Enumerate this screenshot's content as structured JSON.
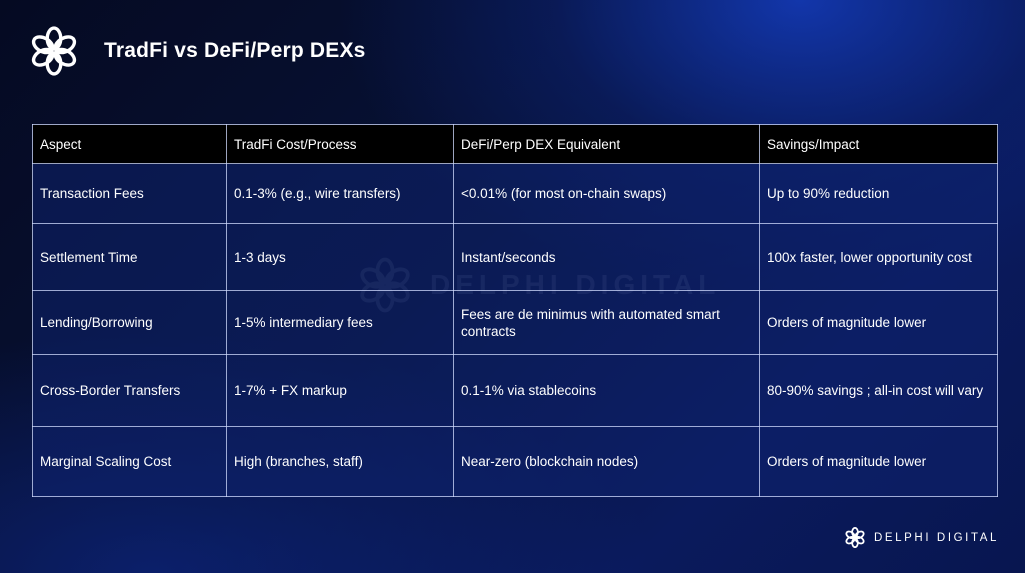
{
  "header": {
    "logo_icon": "delphi-logo-icon",
    "title": "TradFi vs DeFi/Perp DEXs"
  },
  "table": {
    "columns": [
      "Aspect",
      "TradFi Cost/Process",
      "DeFi/Perp DEX Equivalent",
      "Savings/Impact"
    ],
    "rows": [
      [
        "Transaction Fees",
        "0.1-3% (e.g., wire transfers)",
        "<0.01% (for most on-chain swaps)",
        "Up to 90% reduction"
      ],
      [
        "Settlement Time",
        "1-3 days",
        "Instant/seconds",
        "100x faster, lower opportunity cost"
      ],
      [
        "Lending/Borrowing",
        "1-5% intermediary fees",
        "Fees are de minimus with automated smart contracts",
        "Orders of magnitude lower"
      ],
      [
        "Cross-Border Transfers",
        "1-7% + FX markup",
        "0.1-1% via stablecoins",
        "80-90% savings ; all-in cost will vary"
      ],
      [
        "Marginal Scaling Cost",
        "High (branches, staff)",
        "Near-zero (blockchain nodes)",
        "Orders of magnitude lower"
      ]
    ]
  },
  "watermark": {
    "icon": "delphi-logo-icon",
    "text": "DELPHI DIGITAL"
  },
  "footer": {
    "brand_icon": "delphi-logo-icon",
    "brand_text": "DELPHI DIGITAL"
  },
  "colors": {
    "background_dark": "#050a22",
    "background_accent": "#143cbe",
    "header_row": "#000000",
    "text": "#ffffff"
  }
}
